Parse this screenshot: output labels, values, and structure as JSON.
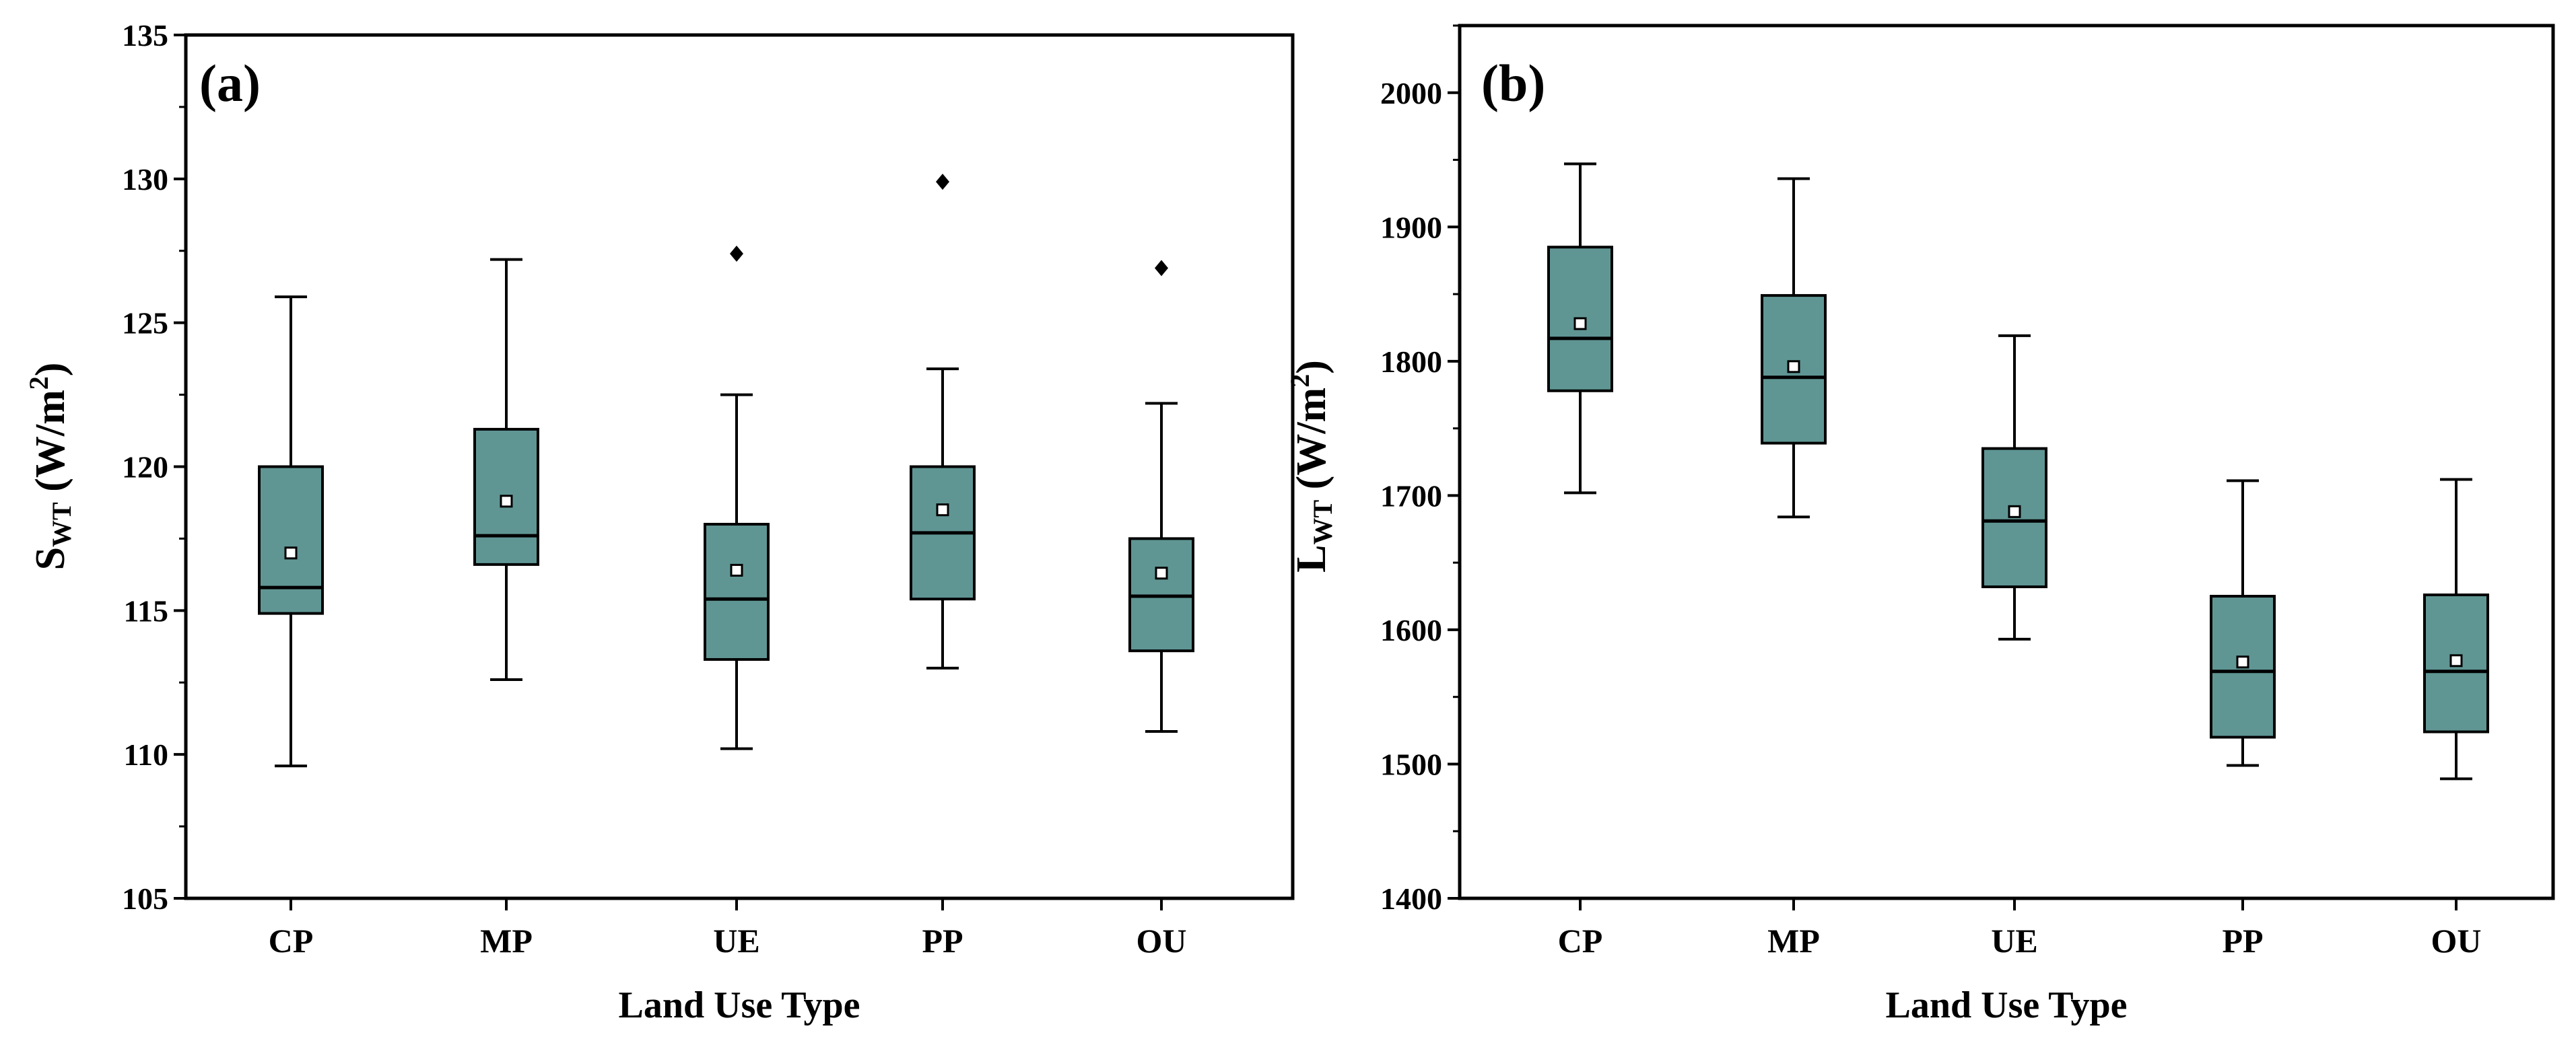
{
  "chart_data": [
    {
      "type": "box",
      "panel_label": "(a)",
      "xlabel": "Land Use Type",
      "ylabel": {
        "main": "S",
        "sub": "WT",
        "unit_pre": " (W/m",
        "unit_sup": "2",
        "unit_post": ")"
      },
      "ylim": [
        105,
        135
      ],
      "yticks": [
        105,
        110,
        115,
        120,
        125,
        130,
        135
      ],
      "categories": [
        "CP",
        "MP",
        "UE",
        "PP",
        "OU"
      ],
      "boxes": [
        {
          "category": "CP",
          "whisker_low": 109.6,
          "q1": 114.9,
          "median": 115.8,
          "q3": 120.0,
          "whisker_high": 125.9,
          "mean": 117.0,
          "outliers": []
        },
        {
          "category": "MP",
          "whisker_low": 112.6,
          "q1": 116.6,
          "median": 117.6,
          "q3": 121.3,
          "whisker_high": 127.2,
          "mean": 118.8,
          "outliers": []
        },
        {
          "category": "UE",
          "whisker_low": 110.2,
          "q1": 113.3,
          "median": 115.4,
          "q3": 118.0,
          "whisker_high": 122.5,
          "mean": 116.4,
          "outliers": [
            127.4
          ]
        },
        {
          "category": "PP",
          "whisker_low": 113.0,
          "q1": 115.4,
          "median": 117.7,
          "q3": 120.0,
          "whisker_high": 123.4,
          "mean": 118.5,
          "outliers": [
            129.9
          ]
        },
        {
          "category": "OU",
          "whisker_low": 110.8,
          "q1": 113.6,
          "median": 115.5,
          "q3": 117.5,
          "whisker_high": 122.2,
          "mean": 116.3,
          "outliers": [
            126.9
          ]
        }
      ]
    },
    {
      "type": "box",
      "panel_label": "(b)",
      "xlabel": "Land Use Type",
      "ylabel": {
        "main": "L",
        "sub": "WT",
        "unit_pre": " (W/m",
        "unit_sup": "2",
        "unit_post": ")"
      },
      "ylim": [
        1400,
        2050
      ],
      "yticks": [
        1400,
        1500,
        1600,
        1700,
        1800,
        1900,
        2000
      ],
      "categories": [
        "CP",
        "MP",
        "UE",
        "PP",
        "OU"
      ],
      "boxes": [
        {
          "category": "CP",
          "whisker_low": 1702,
          "q1": 1778,
          "median": 1817,
          "q3": 1885,
          "whisker_high": 1947,
          "mean": 1828,
          "outliers": []
        },
        {
          "category": "MP",
          "whisker_low": 1684,
          "q1": 1739,
          "median": 1788,
          "q3": 1849,
          "whisker_high": 1936,
          "mean": 1796,
          "outliers": []
        },
        {
          "category": "UE",
          "whisker_low": 1593,
          "q1": 1632,
          "median": 1681,
          "q3": 1735,
          "whisker_high": 1819,
          "mean": 1688,
          "outliers": []
        },
        {
          "category": "PP",
          "whisker_low": 1499,
          "q1": 1520,
          "median": 1569,
          "q3": 1625,
          "whisker_high": 1711,
          "mean": 1576,
          "outliers": []
        },
        {
          "category": "OU",
          "whisker_low": 1489,
          "q1": 1524,
          "median": 1569,
          "q3": 1626,
          "whisker_high": 1712,
          "mean": 1577,
          "outliers": []
        }
      ]
    }
  ],
  "colors": {
    "box_fill": "#5f9694",
    "stroke": "#000000"
  }
}
